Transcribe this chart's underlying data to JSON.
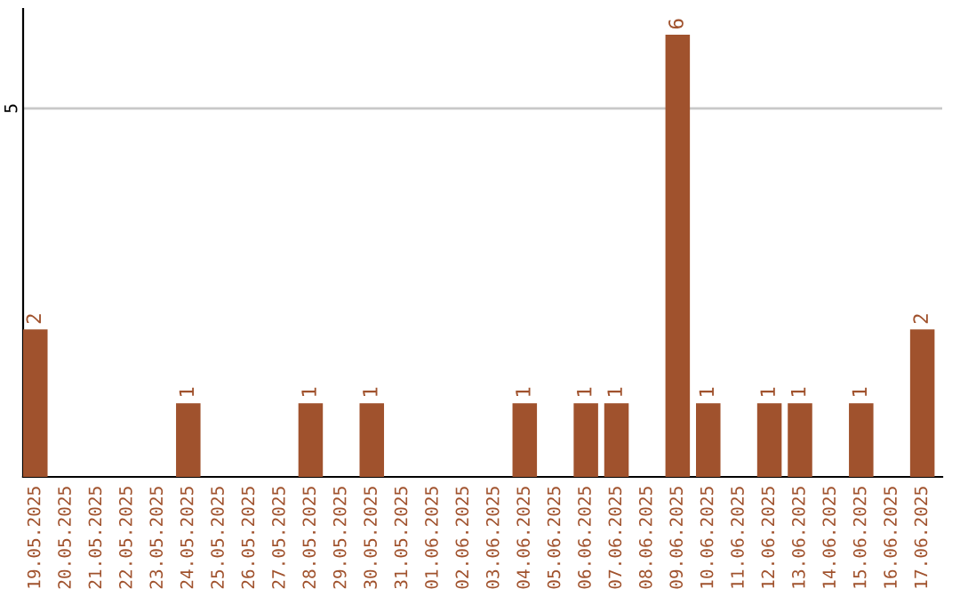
{
  "chart_data": {
    "type": "bar",
    "categories": [
      "19.05.2025",
      "20.05.2025",
      "21.05.2025",
      "22.05.2025",
      "23.05.2025",
      "24.05.2025",
      "25.05.2025",
      "26.05.2025",
      "27.05.2025",
      "28.05.2025",
      "29.05.2025",
      "30.05.2025",
      "31.05.2025",
      "01.06.2025",
      "02.06.2025",
      "03.06.2025",
      "04.06.2025",
      "05.06.2025",
      "06.06.2025",
      "07.06.2025",
      "08.06.2025",
      "09.06.2025",
      "10.06.2025",
      "11.06.2025",
      "12.06.2025",
      "13.06.2025",
      "14.06.2025",
      "15.06.2025",
      "16.06.2025",
      "17.06.2025"
    ],
    "values": [
      2,
      0,
      0,
      0,
      0,
      1,
      0,
      0,
      0,
      1,
      0,
      1,
      0,
      0,
      0,
      0,
      1,
      0,
      1,
      1,
      0,
      6,
      1,
      0,
      1,
      1,
      0,
      1,
      0,
      2
    ],
    "value_labels": [
      "2",
      null,
      null,
      null,
      null,
      "1",
      null,
      null,
      null,
      "1",
      null,
      "1",
      null,
      null,
      null,
      null,
      "1",
      null,
      "1",
      "1",
      null,
      "6",
      "1",
      null,
      "1",
      "1",
      null,
      "1",
      null,
      "2"
    ],
    "color": "#a0522d",
    "ylim": [
      0,
      6.35
    ],
    "yticks": [
      5
    ],
    "grid": "y"
  }
}
